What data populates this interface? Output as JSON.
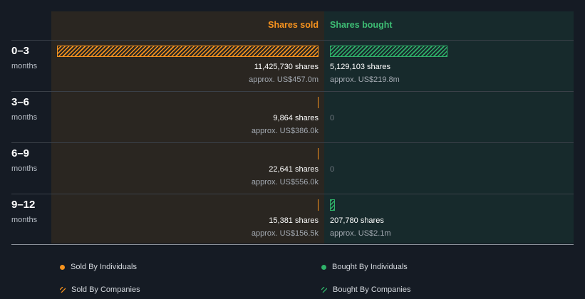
{
  "chart_data": {
    "type": "bar",
    "orientation": "horizontal-diverging",
    "headers": {
      "sold": "Shares sold",
      "bought": "Shares bought"
    },
    "period_unit": "months",
    "max_shares": 11425730,
    "rows": [
      {
        "period": "0–3",
        "unit": "months",
        "sold_value": 11425730,
        "sold_label": "11,425,730 shares",
        "sold_usd": "approx. US$457.0m",
        "bought_value": 5129103,
        "bought_label": "5,129,103 shares",
        "bought_usd": "approx. US$219.8m"
      },
      {
        "period": "3–6",
        "unit": "months",
        "sold_value": 9864,
        "sold_label": "9,864 shares",
        "sold_usd": "approx. US$386.0k",
        "bought_value": 0,
        "bought_label": "0",
        "bought_usd": ""
      },
      {
        "period": "6–9",
        "unit": "months",
        "sold_value": 22641,
        "sold_label": "22,641 shares",
        "sold_usd": "approx. US$556.0k",
        "bought_value": 0,
        "bought_label": "0",
        "bought_usd": ""
      },
      {
        "period": "9–12",
        "unit": "months",
        "sold_value": 15381,
        "sold_label": "15,381 shares",
        "sold_usd": "approx. US$156.5k",
        "bought_value": 207780,
        "bought_label": "207,780 shares",
        "bought_usd": "approx. US$2.1m"
      }
    ],
    "legend": [
      {
        "label": "Sold By Individuals",
        "style": "dot",
        "color": "#f7931e"
      },
      {
        "label": "Bought By Individuals",
        "style": "dot",
        "color": "#2fb36a"
      },
      {
        "label": "Sold By Companies",
        "style": "hatch",
        "color": "#f7931e"
      },
      {
        "label": "Bought By Companies",
        "style": "hatch",
        "color": "#2fb36a"
      }
    ]
  },
  "colors": {
    "sold": "#f7931e",
    "bought": "#2fb36a",
    "background": "#151b24"
  }
}
